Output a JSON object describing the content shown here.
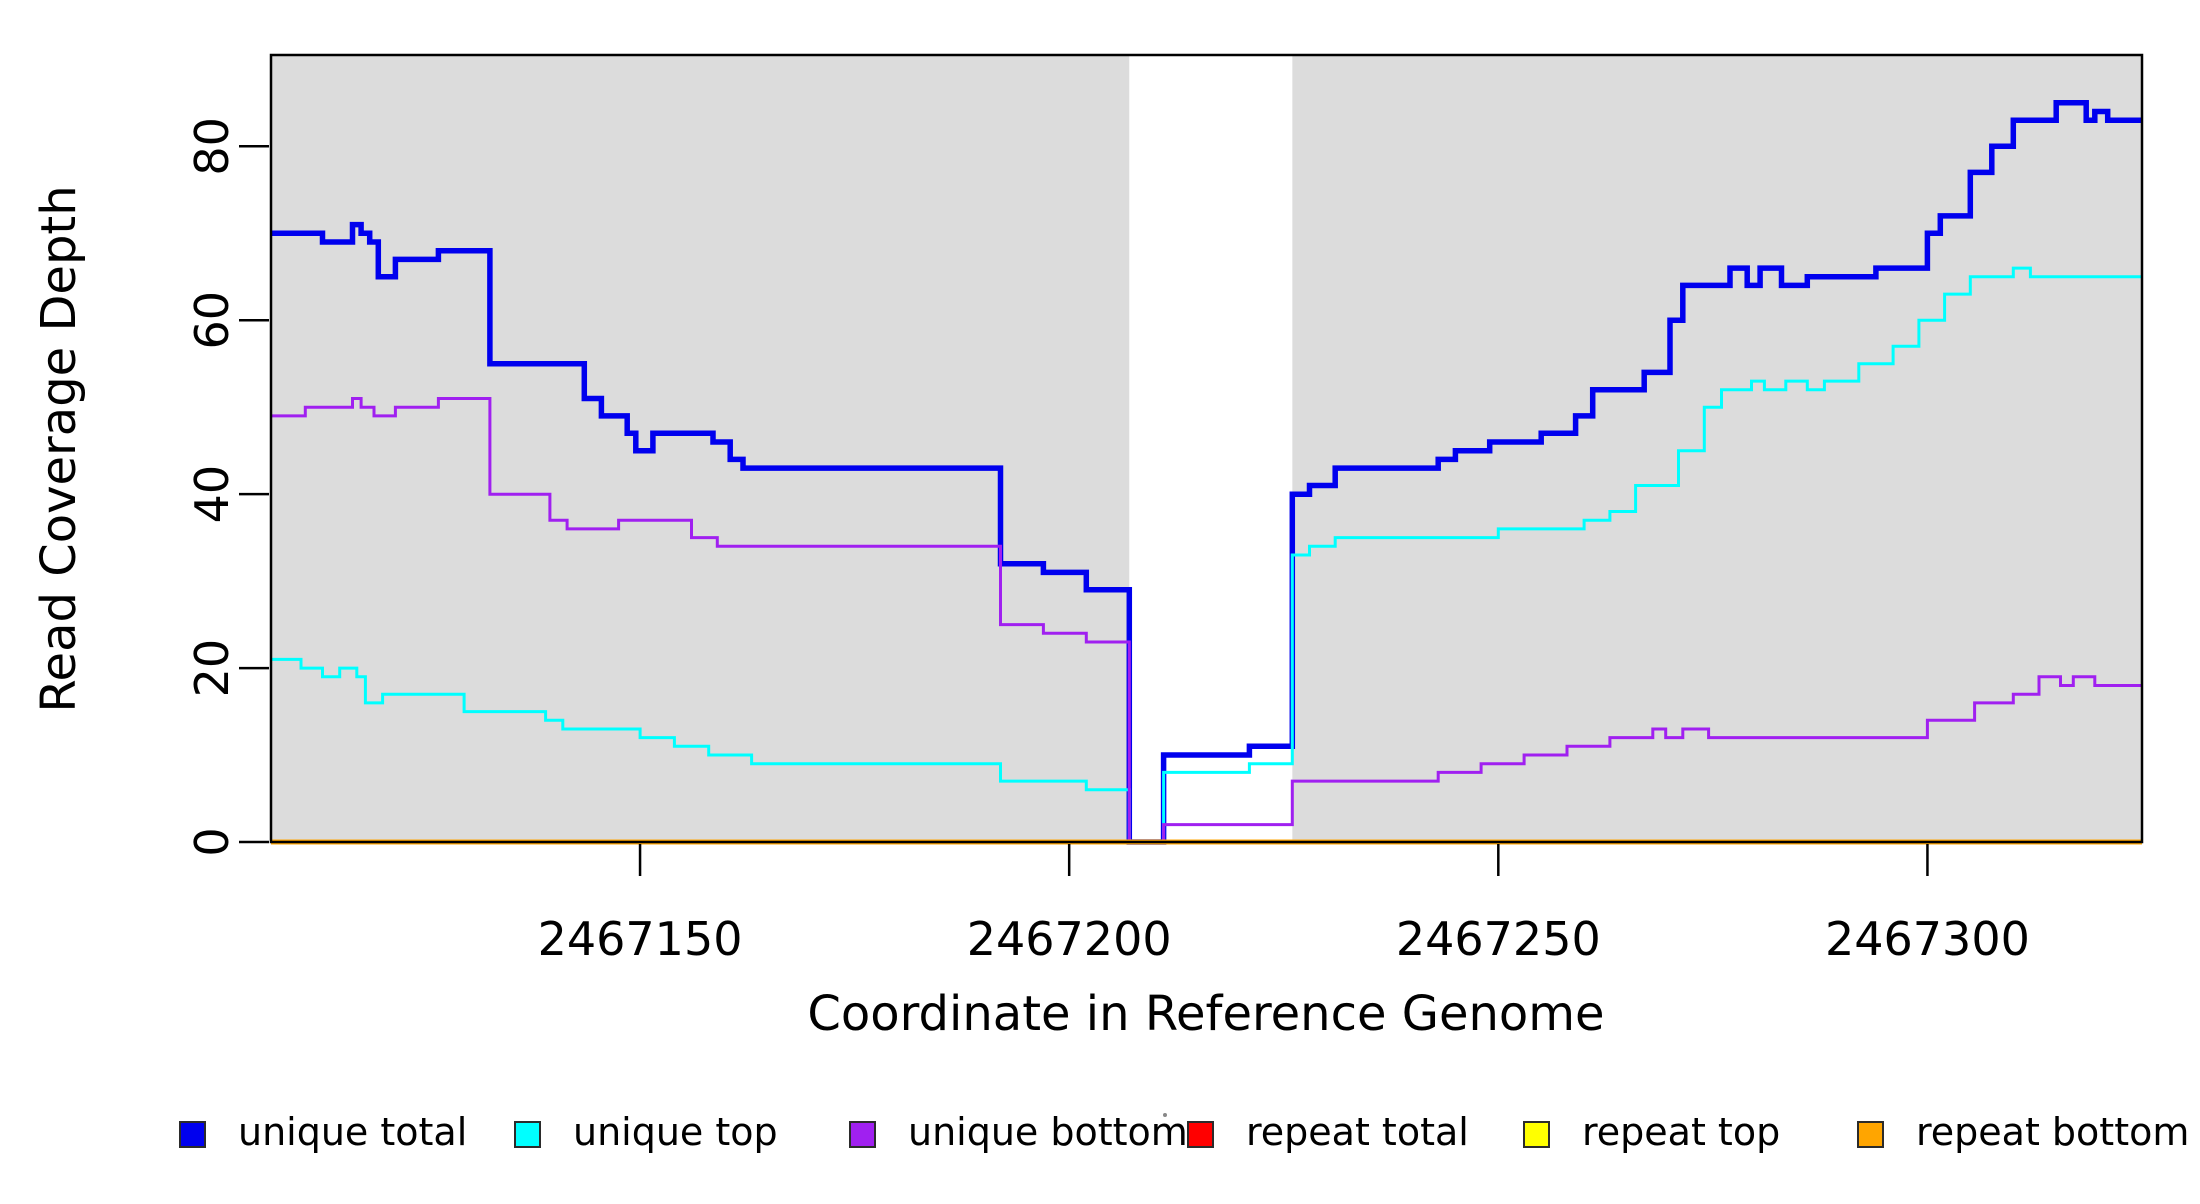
{
  "axes": {
    "xlabel": "Coordinate in Reference Genome",
    "ylabel": "Read Coverage Depth"
  },
  "chart_data": {
    "type": "line",
    "step": true,
    "title": "",
    "xlabel": "Coordinate in Reference Genome",
    "ylabel": "Read Coverage Depth",
    "xlim": [
      2467107,
      2467325
    ],
    "ylim": [
      0,
      90.5
    ],
    "grid": false,
    "plot_bg_color": "#DCDCDC",
    "highlight_band": {
      "from": 2467207,
      "to": 2467226,
      "color": "#FFFFFF"
    },
    "x_ticks": [
      {
        "value": 2467150,
        "label": "2467150"
      },
      {
        "value": 2467200,
        "label": "2467200"
      },
      {
        "value": 2467250,
        "label": "2467250"
      },
      {
        "value": 2467300,
        "label": "2467300"
      }
    ],
    "y_ticks": [
      {
        "value": 0,
        "label": "0"
      },
      {
        "value": 20,
        "label": "20"
      },
      {
        "value": 40,
        "label": "40"
      },
      {
        "value": 60,
        "label": "60"
      },
      {
        "value": 80,
        "label": "80"
      }
    ],
    "legend": {
      "position": "bottom"
    },
    "series": [
      {
        "name": "unique total",
        "color": "#0000EE",
        "width": 5.5,
        "points": [
          [
            2467107,
            70
          ],
          [
            2467113,
            69
          ],
          [
            2467116.5,
            71
          ],
          [
            2467117.5,
            70
          ],
          [
            2467118.5,
            69
          ],
          [
            2467119.5,
            65
          ],
          [
            2467121.5,
            67
          ],
          [
            2467126.5,
            68
          ],
          [
            2467132.5,
            55
          ],
          [
            2467143.5,
            51
          ],
          [
            2467145.5,
            49
          ],
          [
            2467148.5,
            47
          ],
          [
            2467149.5,
            45
          ],
          [
            2467151.5,
            47
          ],
          [
            2467158.5,
            46
          ],
          [
            2467160.5,
            44
          ],
          [
            2467162,
            43
          ],
          [
            2467192,
            32
          ],
          [
            2467197,
            31
          ],
          [
            2467202,
            29
          ],
          [
            2467207,
            0
          ],
          [
            2467211,
            10
          ],
          [
            2467221,
            11
          ],
          [
            2467226,
            40
          ],
          [
            2467228,
            41
          ],
          [
            2467231,
            43
          ],
          [
            2467243,
            44
          ],
          [
            2467245,
            45
          ],
          [
            2467249,
            46
          ],
          [
            2467255,
            47
          ],
          [
            2467259,
            49
          ],
          [
            2467261,
            52
          ],
          [
            2467267,
            54
          ],
          [
            2467270,
            60
          ],
          [
            2467271.5,
            64
          ],
          [
            2467277,
            66
          ],
          [
            2467279,
            64
          ],
          [
            2467280.5,
            66
          ],
          [
            2467283,
            64
          ],
          [
            2467286,
            65
          ],
          [
            2467294,
            66
          ],
          [
            2467300,
            70
          ],
          [
            2467301.5,
            72
          ],
          [
            2467305,
            77
          ],
          [
            2467307.5,
            80
          ],
          [
            2467310,
            83
          ],
          [
            2467315,
            85
          ],
          [
            2467318.5,
            83
          ],
          [
            2467319.5,
            84
          ],
          [
            2467321,
            83
          ]
        ]
      },
      {
        "name": "unique top",
        "color": "#00FFFF",
        "width": 3,
        "points": [
          [
            2467107,
            21
          ],
          [
            2467110.5,
            20
          ],
          [
            2467113,
            19
          ],
          [
            2467115,
            20
          ],
          [
            2467117,
            19
          ],
          [
            2467118,
            16
          ],
          [
            2467120,
            17
          ],
          [
            2467129.5,
            15
          ],
          [
            2467139,
            14
          ],
          [
            2467141,
            13
          ],
          [
            2467150,
            12
          ],
          [
            2467154,
            11
          ],
          [
            2467158,
            10
          ],
          [
            2467163,
            9
          ],
          [
            2467192,
            7
          ],
          [
            2467202,
            6
          ],
          [
            2467207,
            0
          ],
          [
            2467211,
            8
          ],
          [
            2467221,
            9
          ],
          [
            2467226,
            33
          ],
          [
            2467228,
            34
          ],
          [
            2467231,
            35
          ],
          [
            2467250,
            36
          ],
          [
            2467260,
            37
          ],
          [
            2467263,
            38
          ],
          [
            2467266,
            41
          ],
          [
            2467271,
            45
          ],
          [
            2467274,
            50
          ],
          [
            2467276,
            52
          ],
          [
            2467279.5,
            53
          ],
          [
            2467281,
            52
          ],
          [
            2467283.5,
            53
          ],
          [
            2467286,
            52
          ],
          [
            2467288,
            53
          ],
          [
            2467292,
            55
          ],
          [
            2467296,
            57
          ],
          [
            2467299,
            60
          ],
          [
            2467302,
            63
          ],
          [
            2467305,
            65
          ],
          [
            2467310,
            66
          ],
          [
            2467312,
            65
          ]
        ]
      },
      {
        "name": "unique bottom",
        "color": "#A020F0",
        "width": 3,
        "points": [
          [
            2467107,
            49
          ],
          [
            2467111,
            50
          ],
          [
            2467116.5,
            51
          ],
          [
            2467117.5,
            50
          ],
          [
            2467119,
            49
          ],
          [
            2467121.5,
            50
          ],
          [
            2467126.5,
            51
          ],
          [
            2467132.5,
            40
          ],
          [
            2467139.5,
            37
          ],
          [
            2467141.5,
            36
          ],
          [
            2467147.5,
            37
          ],
          [
            2467156,
            35
          ],
          [
            2467159,
            34
          ],
          [
            2467192,
            25
          ],
          [
            2467197,
            24
          ],
          [
            2467202,
            23
          ],
          [
            2467207,
            0
          ],
          [
            2467211,
            2
          ],
          [
            2467226,
            7
          ],
          [
            2467243,
            8
          ],
          [
            2467248,
            9
          ],
          [
            2467253,
            10
          ],
          [
            2467258,
            11
          ],
          [
            2467263,
            12
          ],
          [
            2467268,
            13
          ],
          [
            2467269.5,
            12
          ],
          [
            2467271.5,
            13
          ],
          [
            2467274.5,
            12
          ],
          [
            2467300,
            14
          ],
          [
            2467305.5,
            16
          ],
          [
            2467310,
            17
          ],
          [
            2467313,
            19
          ],
          [
            2467315.5,
            18
          ],
          [
            2467317,
            19
          ],
          [
            2467319.5,
            18
          ]
        ]
      },
      {
        "name": "repeat total",
        "color": "#FF0000",
        "width": 3,
        "points": [
          [
            2467107,
            0
          ]
        ]
      },
      {
        "name": "repeat top",
        "color": "#FFFF00",
        "width": 3,
        "points": [
          [
            2467107,
            0
          ]
        ]
      },
      {
        "name": "repeat bottom",
        "color": "#FFA500",
        "width": 5,
        "points": [
          [
            2467107,
            0
          ]
        ]
      }
    ]
  }
}
